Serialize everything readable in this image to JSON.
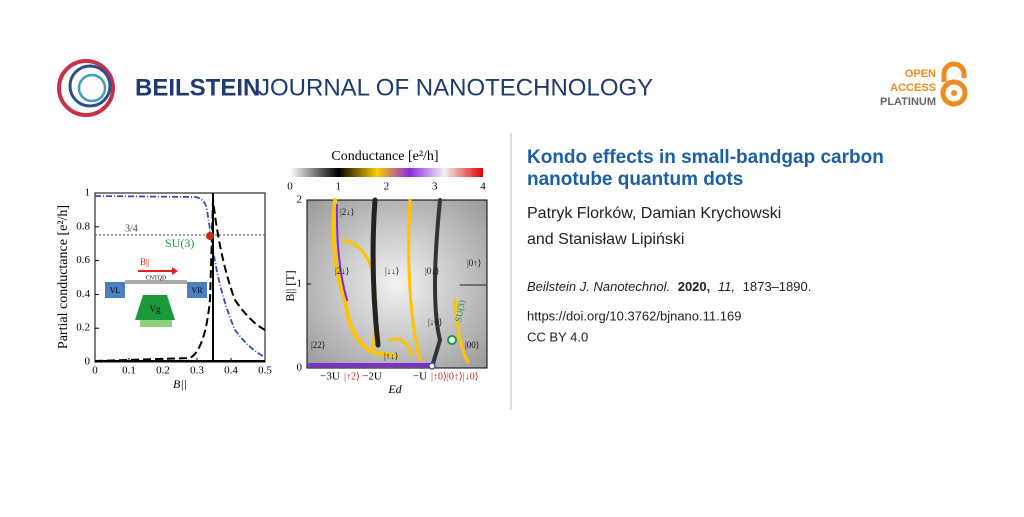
{
  "header": {
    "brand_bold": "BEILSTEIN",
    "brand_light": "JOURNAL OF NANOTECHNOLOGY",
    "badge": [
      "OPEN",
      "ACCESS",
      "PLATINUM"
    ]
  },
  "article": {
    "title": [
      "Kondo effects in small-bandgap carbon",
      "nanotube quantum dots"
    ],
    "authors": [
      "Patryk Florków, Damian Krychowski",
      "and Stanisław Lipiński"
    ],
    "journal": "Beilstein J. Nanotechnol.",
    "year": "2020,",
    "volume": "11,",
    "pages": "1873–1890.",
    "doi": "https://doi.org/10.3762/bjnano.11.169",
    "license": "CC BY 4.0"
  },
  "figure_left": {
    "ylabel": "Partial conductance [e²/h]",
    "xlabel": "B||",
    "xlim": [
      0,
      0.5
    ],
    "xticks": [
      0,
      0.1,
      0.2,
      0.3,
      0.4,
      0.5
    ],
    "ylim": [
      0,
      1
    ],
    "yticks": [
      0,
      0.2,
      0.4,
      0.6,
      0.8,
      1
    ],
    "annotations": [
      "3/4",
      "SU(3)"
    ],
    "inset": [
      "B||",
      "CNTQD",
      "VL",
      "VR",
      "Vg"
    ]
  },
  "figure_right": {
    "colorbar_title": "Conductance [e²/h]",
    "colorbar_lim": [
      0,
      4
    ],
    "colorbar_ticks": [
      0,
      1,
      2,
      3,
      4
    ],
    "ylabel": "B|| [T]",
    "xlabel": "Ed",
    "ylim": [
      0,
      2
    ],
    "yticks": [
      0,
      1,
      2
    ],
    "xticks": [
      "−3U",
      "−2U",
      "−U"
    ],
    "state_labels": [
      "|↑2⟩",
      "|↑0⟩|0↑⟩|↓0⟩"
    ],
    "regions": [
      "|2↓⟩",
      "|2↓⟩",
      "|↓↓⟩",
      "|0↓⟩",
      "|0↑⟩",
      "|22⟩",
      "|↑↓⟩",
      "|↓0⟩",
      "|00⟩",
      "SU(3)"
    ]
  }
}
